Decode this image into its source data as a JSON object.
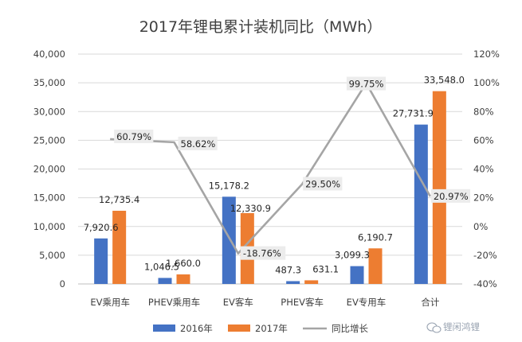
{
  "chart_data": {
    "type": "bar",
    "title": "2017年锂电累计装机同比（MWh）",
    "categories": [
      "EV乘用车",
      "PHEV乘用车",
      "EV客车",
      "PHEV客车",
      "EV专用车",
      "合计"
    ],
    "series": [
      {
        "name": "2016年",
        "values": [
          7920.6,
          1046.5,
          15178.2,
          487.3,
          3099.3,
          27731.9
        ],
        "labels": [
          "7,920.6",
          "1,046.5",
          "15,178.2",
          "487.3",
          "3,099.3",
          "27,731.9"
        ],
        "color": "#4472c4"
      },
      {
        "name": "2017年",
        "values": [
          12735.4,
          1660.0,
          12330.9,
          631.1,
          6190.7,
          33548.0
        ],
        "labels": [
          "12,735.4",
          "1,660.0",
          "12,330.9",
          "631.1",
          "6,190.7",
          "33,548.0"
        ],
        "color": "#ed7d31"
      }
    ],
    "line_series": {
      "name": "同比增长",
      "values": [
        60.79,
        58.62,
        -18.76,
        29.5,
        99.75,
        20.97
      ],
      "labels": [
        "60.79%",
        "58.62%",
        "-18.76%",
        "29.50%",
        "99.75%",
        "20.97%"
      ],
      "color": "#a5a5a5"
    },
    "ylim": [
      0,
      40000
    ],
    "y_ticks": [
      "0",
      "5,000",
      "10,000",
      "15,000",
      "20,000",
      "25,000",
      "30,000",
      "35,000",
      "40,000"
    ],
    "y2lim": [
      -40,
      120
    ],
    "y2_ticks": [
      "-40%",
      "-20%",
      "0%",
      "20%",
      "40%",
      "60%",
      "80%",
      "100%",
      "120%"
    ],
    "legend_position": "bottom",
    "grid": true
  },
  "watermark": "锂闲鸿锂"
}
